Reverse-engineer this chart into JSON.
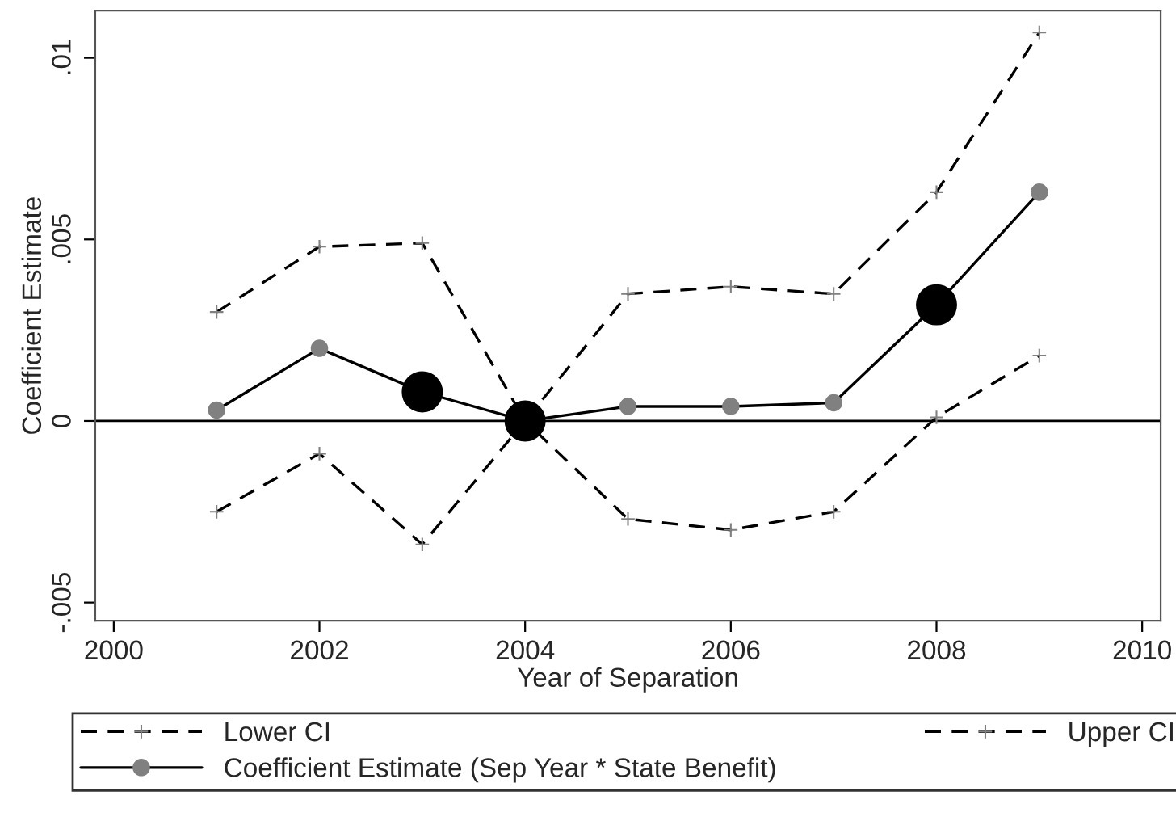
{
  "chart_data": {
    "type": "line",
    "xlabel": "Year of Separation",
    "ylabel": "Coefficient Estimate",
    "x": [
      2001,
      2002,
      2003,
      2004,
      2005,
      2006,
      2007,
      2008,
      2009
    ],
    "series": [
      {
        "name": "Lower CI",
        "color": "#000000",
        "marker": "cross",
        "line_style": "dashed",
        "values": [
          -0.0025,
          -0.0009,
          -0.0034,
          0,
          -0.0027,
          -0.003,
          -0.0025,
          0.0001,
          0.0018
        ]
      },
      {
        "name": "Coefficient Estimate (Sep Year * State Benefit)",
        "color": "#000000",
        "marker": "circle",
        "line_style": "solid",
        "values": [
          0.0003,
          0.002,
          0.0008,
          0,
          0.0004,
          0.0004,
          0.0005,
          0.0032,
          0.0063
        ]
      },
      {
        "name": "Upper CI",
        "color": "#000000",
        "marker": "cross",
        "line_style": "dashed",
        "values": [
          0.003,
          0.0048,
          0.0049,
          0,
          0.0035,
          0.0037,
          0.0035,
          0.0063,
          0.0107
        ]
      },
      {
        "type": "scatter",
        "color": "#000000",
        "marker": "circle",
        "x": [
          2003,
          2004,
          2008
        ],
        "values": [
          0.0008,
          0,
          0.0032
        ]
      }
    ],
    "xlim": [
      1999.82,
      2010.18
    ],
    "xticks": [
      2000,
      2002,
      2004,
      2006,
      2008,
      2010
    ],
    "ylim": [
      -0.0055,
      0.0113
    ],
    "yticks": [
      {
        "value": -0.005,
        "label": "-.005"
      },
      {
        "value": 0,
        "label": "0"
      },
      {
        "value": 0.005,
        "label": ".005"
      },
      {
        "value": 0.01,
        "label": ".01"
      }
    ],
    "ref_lines": [
      {
        "axis": "y",
        "value": 0,
        "color": "#000000",
        "line_style": "solid"
      }
    ],
    "grid": false,
    "legend": "bottom"
  }
}
